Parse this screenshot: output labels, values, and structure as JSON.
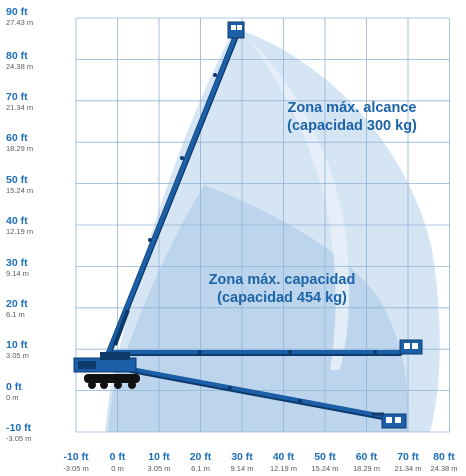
{
  "axes": {
    "x_ticks": [
      {
        "ft": "-10 ft",
        "m": "-3.05 m"
      },
      {
        "ft": "0 ft",
        "m": "0 m"
      },
      {
        "ft": "10 ft",
        "m": "3.05 m"
      },
      {
        "ft": "20 ft",
        "m": "6.1 m"
      },
      {
        "ft": "30 ft",
        "m": "9.14 m"
      },
      {
        "ft": "40 ft",
        "m": "12.19 m"
      },
      {
        "ft": "50 ft",
        "m": "15.24 m"
      },
      {
        "ft": "60 ft",
        "m": "18.29 m"
      },
      {
        "ft": "70 ft",
        "m": "21.34 m"
      },
      {
        "ft": "80 ft",
        "m": "24.38 m"
      }
    ],
    "y_ticks": [
      {
        "ft": "90 ft",
        "m": "27.43 m"
      },
      {
        "ft": "80 ft",
        "m": "24.38 m"
      },
      {
        "ft": "70 ft",
        "m": "21.34 m"
      },
      {
        "ft": "60 ft",
        "m": "18.29 m"
      },
      {
        "ft": "50 ft",
        "m": "15.24 m"
      },
      {
        "ft": "40 ft",
        "m": "12.19 m"
      },
      {
        "ft": "30 ft",
        "m": "9.14 m"
      },
      {
        "ft": "20 ft",
        "m": "6.1 m"
      },
      {
        "ft": "10 ft",
        "m": "3.05 m"
      },
      {
        "ft": "0 ft",
        "m": "0 m"
      },
      {
        "ft": "-10 ft",
        "m": "-3.05 m"
      }
    ]
  },
  "zones": {
    "max_reach": {
      "line1": "Zona máx. alcance",
      "line2": "(capacidad 300 kg)"
    },
    "max_capacity": {
      "line1": "Zona máx. capacidad",
      "line2": "(capacidad 454 kg)"
    }
  },
  "colors": {
    "grid": "#8fb3d6",
    "boom": "#1a5fa8",
    "boom_dark": "#0e3a6b",
    "zone_outer": "#d6e5f3",
    "zone_inner": "#bcd5ec",
    "label_blue": "#1c63a8"
  }
}
